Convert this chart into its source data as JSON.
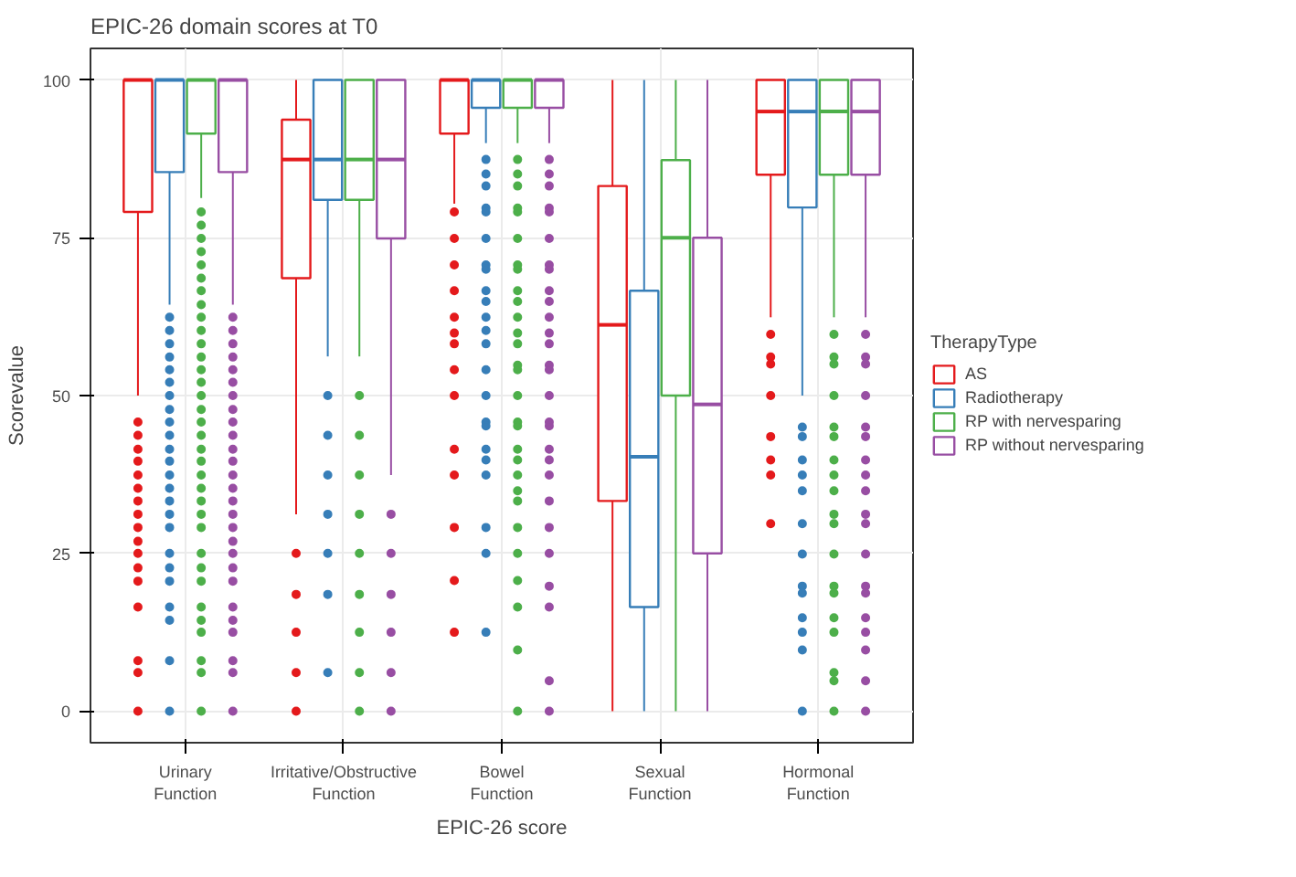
{
  "chart_data": {
    "type": "box",
    "title": "EPIC-26 domain scores at T0",
    "xlabel": "EPIC-26 score",
    "ylabel": "Scorevalue",
    "legend_title": "TherapyType",
    "legend": "right",
    "grid": true,
    "marker": "circle",
    "categories": [
      "Urinary\nFunction",
      "Irritative/Obstructive\nFunction",
      "Bowel\nFunction",
      "Sexual\nFunction",
      "Hormonal\nFunction"
    ],
    "ylim": [
      -5,
      105
    ],
    "yticks": [
      0,
      25,
      50,
      75,
      100
    ],
    "series": [
      {
        "name": "AS",
        "color": "#e41a1c",
        "boxes": [
          {
            "low": 50,
            "q1": 79.1,
            "median": 100,
            "q3": 100,
            "high": 100,
            "outliers": [
              45.8,
              43.7,
              41.5,
              39.6,
              37.4,
              35.3,
              33.3,
              31.2,
              29.1,
              26.9,
              25,
              22.7,
              20.6,
              16.5,
              8,
              6.1,
              0
            ]
          },
          {
            "low": 31.2,
            "q1": 68.6,
            "median": 87.4,
            "q3": 93.7,
            "high": 100,
            "outliers": [
              25,
              18.5,
              12.5,
              6.1,
              0
            ]
          },
          {
            "low": 80.4,
            "q1": 91.5,
            "median": 100,
            "q3": 100,
            "high": 100,
            "outliers": [
              79.1,
              74.9,
              70.7,
              66.6,
              62.4,
              59.9,
              58.2,
              54.1,
              50,
              41.5,
              37.4,
              29.1,
              20.7,
              12.5
            ]
          },
          {
            "low": 0,
            "q1": 33.3,
            "median": 61.2,
            "q3": 83.2,
            "high": 100
          },
          {
            "low": 62.4,
            "q1": 85,
            "median": 95,
            "q3": 100,
            "high": 100,
            "outliers": [
              59.7,
              56.1,
              55,
              50,
              43.5,
              39.8,
              37.4,
              29.7
            ]
          }
        ]
      },
      {
        "name": "Radiotherapy",
        "color": "#377eb8",
        "boxes": [
          {
            "low": 64.4,
            "q1": 85.4,
            "median": 100,
            "q3": 100,
            "high": 100,
            "outliers": [
              62.4,
              60.3,
              58.2,
              56.1,
              54.1,
              52.1,
              50,
              47.8,
              45.8,
              43.7,
              41.5,
              39.6,
              37.4,
              35.3,
              33.3,
              31.2,
              29.1,
              25,
              22.7,
              20.6,
              16.5,
              14.4,
              8,
              0
            ]
          },
          {
            "low": 56.2,
            "q1": 81,
            "median": 87.4,
            "q3": 100,
            "high": 100,
            "outliers": [
              50,
              43.7,
              37.4,
              31.2,
              25,
              18.5,
              6.1
            ]
          },
          {
            "low": 90,
            "q1": 95.6,
            "median": 100,
            "q3": 100,
            "high": 100,
            "outliers": [
              87.4,
              85.1,
              83.2,
              79.7,
              79.1,
              74.9,
              70.7,
              70,
              66.6,
              64.9,
              62.4,
              60.3,
              58.2,
              54.1,
              50,
              45.8,
              45.2,
              41.5,
              39.8,
              37.4,
              29.1,
              25,
              12.5
            ]
          },
          {
            "low": 0,
            "q1": 16.5,
            "median": 40.3,
            "q3": 66.6,
            "high": 100
          },
          {
            "low": 50,
            "q1": 79.8,
            "median": 95,
            "q3": 100,
            "high": 100,
            "outliers": [
              45,
              43.5,
              39.8,
              37.4,
              34.9,
              29.7,
              24.9,
              19.8,
              18.7,
              14.8,
              12.5,
              9.7,
              0
            ]
          }
        ]
      },
      {
        "name": "RP with nervesparing",
        "color": "#4daf4a",
        "boxes": [
          {
            "low": 81.3,
            "q1": 91.5,
            "median": 100,
            "q3": 100,
            "high": 100,
            "outliers": [
              79.1,
              77,
              74.9,
              72.8,
              70.7,
              68.6,
              66.6,
              64.4,
              62.4,
              60.3,
              58.2,
              56.1,
              54.1,
              52.1,
              50,
              47.8,
              45.8,
              43.7,
              41.5,
              39.6,
              37.4,
              35.3,
              33.3,
              31.2,
              29.1,
              25,
              22.7,
              20.6,
              16.5,
              14.4,
              12.5,
              8,
              6.1,
              0
            ]
          },
          {
            "low": 56.2,
            "q1": 81,
            "median": 87.4,
            "q3": 100,
            "high": 100,
            "outliers": [
              50,
              43.7,
              37.4,
              31.2,
              25,
              18.5,
              12.5,
              6.1,
              0
            ]
          },
          {
            "low": 90,
            "q1": 95.6,
            "median": 100,
            "q3": 100,
            "high": 100,
            "outliers": [
              87.4,
              85.1,
              83.2,
              79.7,
              79.1,
              74.9,
              70.7,
              70,
              66.6,
              64.9,
              62.4,
              59.9,
              58.2,
              54.8,
              54.1,
              50,
              45.8,
              45.2,
              41.5,
              39.8,
              37.4,
              34.9,
              33.3,
              29.1,
              25,
              20.7,
              16.5,
              9.7,
              0
            ]
          },
          {
            "low": 0,
            "q1": 50,
            "median": 75,
            "q3": 87.3,
            "high": 100
          },
          {
            "low": 62.4,
            "q1": 85,
            "median": 95,
            "q3": 100,
            "high": 100,
            "outliers": [
              59.7,
              56.1,
              55,
              50,
              45,
              43.5,
              39.8,
              37.4,
              34.9,
              31.2,
              29.7,
              24.9,
              19.8,
              18.7,
              14.8,
              12.5,
              6.1,
              4.8,
              0
            ]
          }
        ]
      },
      {
        "name": "RP without nervesparing",
        "color": "#984ea3",
        "boxes": [
          {
            "low": 64.4,
            "q1": 85.4,
            "median": 100,
            "q3": 100,
            "high": 100,
            "outliers": [
              62.4,
              60.3,
              58.2,
              56.1,
              54.1,
              52.1,
              50,
              47.8,
              45.8,
              43.7,
              41.5,
              39.6,
              37.4,
              35.3,
              33.3,
              31.2,
              29.1,
              26.9,
              25,
              22.7,
              20.6,
              16.5,
              14.4,
              12.5,
              8,
              6.1,
              0
            ]
          },
          {
            "low": 37.4,
            "q1": 74.9,
            "median": 87.4,
            "q3": 100,
            "high": 100,
            "outliers": [
              31.2,
              25,
              18.5,
              12.5,
              6.1,
              0
            ]
          },
          {
            "low": 90,
            "q1": 95.6,
            "median": 100,
            "q3": 100,
            "high": 100,
            "outliers": [
              87.4,
              85.1,
              83.2,
              79.7,
              79.1,
              74.9,
              70.7,
              70,
              66.6,
              64.9,
              62.4,
              59.9,
              58.2,
              54.8,
              54.1,
              50,
              45.8,
              45.2,
              41.5,
              39.8,
              37.4,
              33.3,
              29.1,
              25,
              19.8,
              16.5,
              4.8,
              0
            ]
          },
          {
            "low": 0,
            "q1": 25,
            "median": 48.6,
            "q3": 75,
            "high": 100
          },
          {
            "low": 62.4,
            "q1": 85,
            "median": 95,
            "q3": 100,
            "high": 100,
            "outliers": [
              59.7,
              56.1,
              55,
              50,
              45,
              43.5,
              39.8,
              37.4,
              34.9,
              31.2,
              29.7,
              24.9,
              19.8,
              18.7,
              14.8,
              12.5,
              9.7,
              4.8,
              0
            ]
          }
        ]
      }
    ]
  }
}
